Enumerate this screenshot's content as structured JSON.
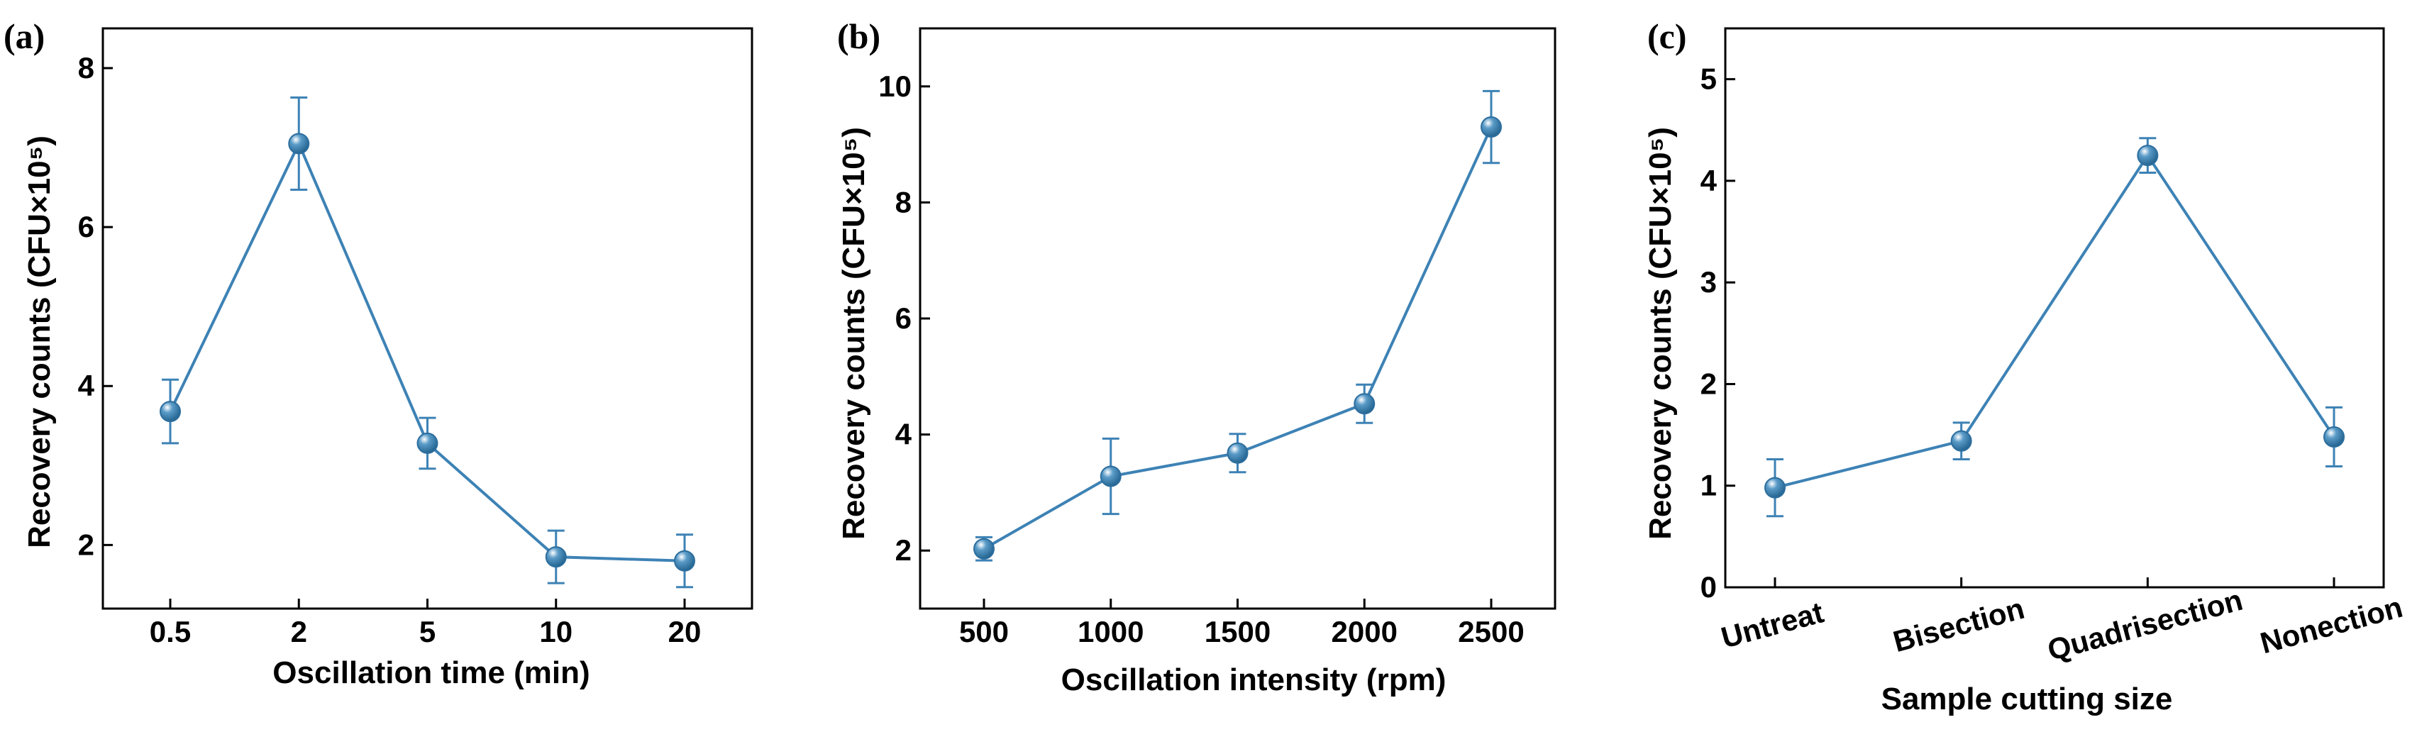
{
  "colors": {
    "series": "#3d82b5",
    "marker_fill": "#5a9bc8",
    "axis": "#000000"
  },
  "chart_data": [
    {
      "panel": "(a)",
      "type": "line",
      "categories": [
        "0.5",
        "2",
        "5",
        "10",
        "20"
      ],
      "values": [
        3.68,
        7.05,
        3.28,
        1.85,
        1.8
      ],
      "errors": [
        0.4,
        0.58,
        0.32,
        0.33,
        0.33
      ],
      "xlabel": "Oscillation time (min)",
      "ylabel": "Recovery counts (CFU×10⁵)",
      "ylim": [
        1.2,
        8.5
      ],
      "yticks": [
        "2",
        "4",
        "6",
        "8"
      ],
      "grid": false
    },
    {
      "panel": "(b)",
      "type": "line",
      "categories": [
        "500",
        "1000",
        "1500",
        "2000",
        "2500"
      ],
      "values": [
        2.03,
        3.28,
        3.68,
        4.53,
        9.3
      ],
      "errors": [
        0.2,
        0.65,
        0.33,
        0.33,
        0.62
      ],
      "xlabel": "Oscillation intensity (rpm)",
      "ylabel": "Recovery counts (CFU×10⁵)",
      "ylim": [
        1.0,
        11.0
      ],
      "yticks": [
        "2",
        "4",
        "6",
        "8",
        "10"
      ],
      "grid": false
    },
    {
      "panel": "(c)",
      "type": "line",
      "categories": [
        "Untreat",
        "Bisection",
        "Quadrisection",
        "Nonection"
      ],
      "values": [
        0.98,
        1.44,
        4.25,
        1.48
      ],
      "errors": [
        0.28,
        0.18,
        0.17,
        0.29
      ],
      "xlabel": "Sample cutting size",
      "ylabel": "Recovery counts (CFU×10⁵)",
      "ylim": [
        0,
        5.5
      ],
      "yticks": [
        "0",
        "1",
        "2",
        "3",
        "4",
        "5"
      ],
      "grid": false
    }
  ]
}
